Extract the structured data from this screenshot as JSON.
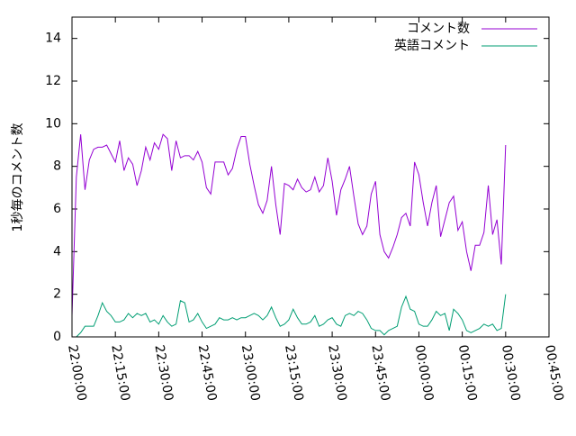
{
  "chart_data": {
    "type": "line",
    "title": "",
    "xlabel": "",
    "ylabel": "1秒毎のコメント数",
    "ylim": [
      0,
      15
    ],
    "y_ticks": [
      0,
      2,
      4,
      6,
      8,
      10,
      12,
      14
    ],
    "x_ticks": [
      "22:00:00",
      "22:15:00",
      "22:30:00",
      "22:45:00",
      "23:00:00",
      "23:15:00",
      "23:30:00",
      "23:45:00",
      "00:00:00",
      "00:15:00",
      "00:30:00",
      "00:45:00"
    ],
    "x_range_minutes": [
      0,
      165
    ],
    "legend_position": "top-right",
    "x_step_minutes": 1.5,
    "series": [
      {
        "name": "コメント数",
        "color": "#9400d3",
        "values": [
          1.0,
          7.5,
          9.5,
          6.9,
          8.3,
          8.8,
          8.9,
          8.9,
          9.0,
          8.6,
          8.2,
          9.2,
          7.8,
          8.4,
          8.1,
          7.1,
          7.8,
          8.9,
          8.3,
          9.1,
          8.8,
          9.5,
          9.3,
          7.8,
          9.2,
          8.4,
          8.5,
          8.5,
          8.3,
          8.7,
          8.2,
          7.0,
          6.7,
          8.2,
          8.2,
          8.2,
          7.6,
          7.9,
          8.8,
          9.4,
          9.4,
          8.1,
          7.1,
          6.2,
          5.8,
          6.4,
          8.0,
          6.2,
          4.8,
          7.2,
          7.1,
          6.9,
          7.4,
          7.0,
          6.8,
          6.9,
          7.5,
          6.8,
          7.1,
          8.4,
          7.3,
          5.7,
          6.9,
          7.4,
          8.0,
          6.6,
          5.3,
          4.8,
          5.2,
          6.7,
          7.3,
          4.8,
          4.0,
          3.7,
          4.2,
          4.8,
          5.6,
          5.8,
          5.2,
          8.2,
          7.6,
          6.3,
          5.2,
          6.3,
          7.1,
          4.7,
          5.5,
          6.3,
          6.6,
          5.0,
          5.4,
          4.0,
          3.1,
          4.3,
          4.3,
          4.9,
          7.1,
          4.8,
          5.5,
          3.4,
          9.0
        ]
      },
      {
        "name": "英語コメント",
        "color": "#009e73",
        "values": [
          0.0,
          0.0,
          0.2,
          0.5,
          0.5,
          0.5,
          1.0,
          1.6,
          1.2,
          1.0,
          0.7,
          0.7,
          0.8,
          1.1,
          0.9,
          1.1,
          1.0,
          1.1,
          0.7,
          0.8,
          0.6,
          1.0,
          0.7,
          0.5,
          0.6,
          1.7,
          1.6,
          0.7,
          0.8,
          1.1,
          0.7,
          0.4,
          0.5,
          0.6,
          0.9,
          0.8,
          0.8,
          0.9,
          0.8,
          0.9,
          0.9,
          1.0,
          1.1,
          1.0,
          0.8,
          1.0,
          1.4,
          0.9,
          0.5,
          0.6,
          0.8,
          1.3,
          0.9,
          0.6,
          0.6,
          0.7,
          1.0,
          0.5,
          0.6,
          0.8,
          0.9,
          0.6,
          0.5,
          1.0,
          1.1,
          1.0,
          1.2,
          1.1,
          0.8,
          0.4,
          0.3,
          0.3,
          0.1,
          0.3,
          0.4,
          0.5,
          1.4,
          1.9,
          1.3,
          1.2,
          0.6,
          0.5,
          0.5,
          0.8,
          1.2,
          1.0,
          1.1,
          0.3,
          1.3,
          1.1,
          0.8,
          0.3,
          0.2,
          0.3,
          0.4,
          0.6,
          0.5,
          0.6,
          0.3,
          0.4,
          2.0
        ]
      }
    ]
  }
}
